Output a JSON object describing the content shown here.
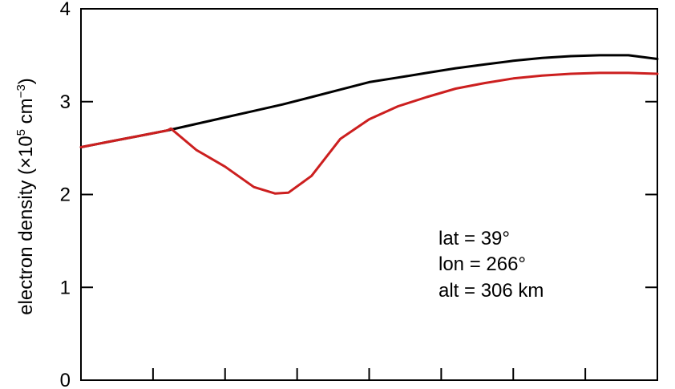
{
  "chart_data": {
    "type": "line",
    "title": "",
    "xlabel": "",
    "ylabel": {
      "prefix": "electron density (×10",
      "exp1": "5",
      "mid": " cm",
      "exp2": "−3",
      "suffix": ")"
    },
    "xlim": [
      0,
      1
    ],
    "ylim": [
      0,
      4
    ],
    "yticks": [
      0,
      1,
      2,
      3,
      4
    ],
    "ytick_labels": [
      "0",
      "1",
      "2",
      "3",
      "4"
    ],
    "xticks": [
      0.125,
      0.25,
      0.375,
      0.5,
      0.625,
      0.75,
      0.875
    ],
    "xtick_labels": [],
    "grid": false,
    "legend": "none",
    "series": [
      {
        "color": "#000000",
        "x": [
          0.0,
          0.05,
          0.1,
          0.15,
          0.2,
          0.25,
          0.3,
          0.35,
          0.4,
          0.45,
          0.5,
          0.55,
          0.6,
          0.65,
          0.7,
          0.75,
          0.8,
          0.85,
          0.9,
          0.95,
          1.0
        ],
        "y": [
          2.51,
          2.57,
          2.63,
          2.69,
          2.76,
          2.83,
          2.9,
          2.97,
          3.05,
          3.13,
          3.21,
          3.26,
          3.31,
          3.36,
          3.4,
          3.44,
          3.47,
          3.49,
          3.5,
          3.5,
          3.46
        ]
      },
      {
        "color": "#cc1f1f",
        "x": [
          0.0,
          0.05,
          0.1,
          0.15,
          0.156,
          0.2,
          0.25,
          0.3,
          0.337,
          0.36,
          0.4,
          0.45,
          0.5,
          0.55,
          0.6,
          0.65,
          0.7,
          0.75,
          0.8,
          0.85,
          0.9,
          0.95,
          1.0
        ],
        "y": [
          2.51,
          2.57,
          2.63,
          2.69,
          2.71,
          2.48,
          2.3,
          2.08,
          2.01,
          2.02,
          2.2,
          2.6,
          2.81,
          2.95,
          3.05,
          3.14,
          3.2,
          3.25,
          3.28,
          3.3,
          3.31,
          3.31,
          3.3
        ]
      }
    ],
    "annotations": [
      "lat = 39°",
      "lon = 266°",
      "alt = 306 km"
    ]
  }
}
